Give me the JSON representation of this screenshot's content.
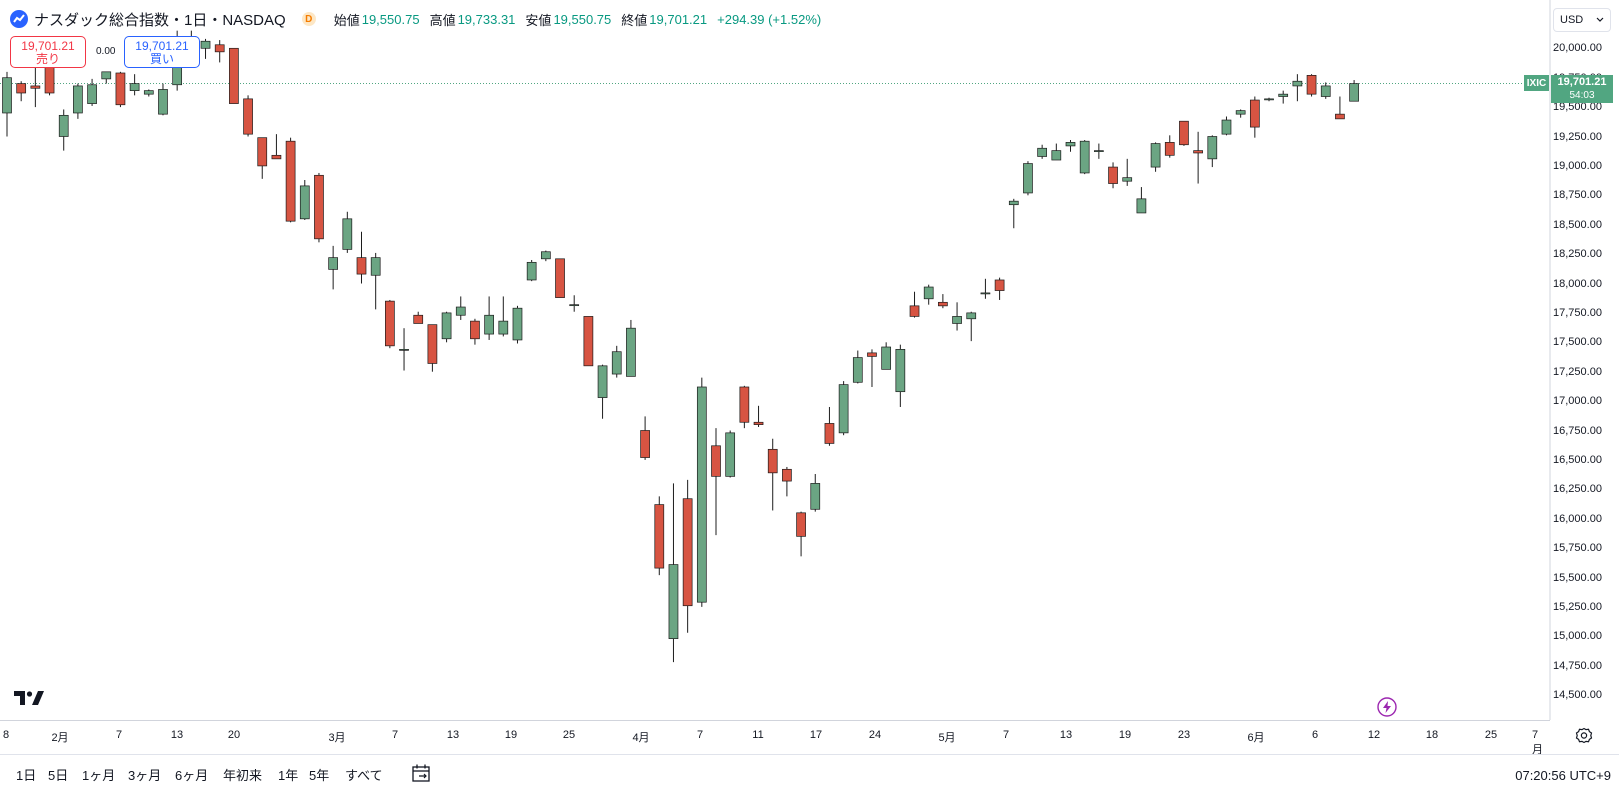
{
  "header": {
    "title": "ナスダック総合指数・1日・NASDAQ",
    "badge": "D",
    "open_label": "始値",
    "open": "19,550.75",
    "high_label": "高値",
    "high": "19,733.31",
    "low_label": "安値",
    "low": "19,550.75",
    "close_label": "終値",
    "close": "19,701.21",
    "change": "+294.39 (+1.52%)"
  },
  "trade": {
    "sell_price": "19,701.21",
    "sell_label": "売り",
    "spread": "0.00",
    "buy_price": "19,701.21",
    "buy_label": "買い"
  },
  "currency": "USD",
  "price_tag": {
    "symbol": "IXIC",
    "price": "19,701.21",
    "countdown": "54:03"
  },
  "colors": {
    "up": "#6ba583",
    "down": "#d75442",
    "tag": "#51a681"
  },
  "y_ticks": [
    "20,000.00",
    "19,750.00",
    "19,500.00",
    "19,250.00",
    "19,000.00",
    "18,750.00",
    "18,500.00",
    "18,250.00",
    "18,000.00",
    "17,750.00",
    "17,500.00",
    "17,250.00",
    "17,000.00",
    "16,750.00",
    "16,500.00",
    "16,250.00",
    "16,000.00",
    "15,750.00",
    "15,500.00",
    "15,250.00",
    "15,000.00",
    "14,750.00",
    "14,500.00"
  ],
  "x_ticks": [
    "8",
    "2月",
    "7",
    "13",
    "20",
    "3月",
    "7",
    "13",
    "19",
    "25",
    "4月",
    "7",
    "11",
    "17",
    "24",
    "5月",
    "7",
    "13",
    "19",
    "23",
    "6月",
    "6",
    "12",
    "18",
    "25",
    "7月"
  ],
  "bottom": {
    "ranges": [
      "1日",
      "5日",
      "1ヶ月",
      "3ヶ月",
      "6ヶ月",
      "年初来",
      "1年",
      "5年",
      "すべて"
    ],
    "time": "07:20:56 UTC+9"
  },
  "chart_data": {
    "type": "candlestick",
    "ylim": [
      14500,
      20200
    ],
    "last_price": 19701.21,
    "candles": [
      {
        "o": 19450,
        "h": 19800,
        "l": 19250,
        "c": 19750
      },
      {
        "o": 19700,
        "h": 19720,
        "l": 19550,
        "c": 19620
      },
      {
        "o": 19680,
        "h": 19850,
        "l": 19500,
        "c": 19660
      },
      {
        "o": 19940,
        "h": 19960,
        "l": 19600,
        "c": 19620
      },
      {
        "o": 19250,
        "h": 19480,
        "l": 19130,
        "c": 19430
      },
      {
        "o": 19450,
        "h": 19700,
        "l": 19400,
        "c": 19680
      },
      {
        "o": 19530,
        "h": 19740,
        "l": 19510,
        "c": 19690
      },
      {
        "o": 19740,
        "h": 19800,
        "l": 19700,
        "c": 19800
      },
      {
        "o": 19790,
        "h": 19800,
        "l": 19500,
        "c": 19520
      },
      {
        "o": 19640,
        "h": 19780,
        "l": 19600,
        "c": 19700
      },
      {
        "o": 19610,
        "h": 19650,
        "l": 19590,
        "c": 19640
      },
      {
        "o": 19440,
        "h": 19700,
        "l": 19430,
        "c": 19650
      },
      {
        "o": 19690,
        "h": 20150,
        "l": 19640,
        "c": 20100
      },
      {
        "o": 20100,
        "h": 20150,
        "l": 20040,
        "c": 20040
      },
      {
        "o": 20000,
        "h": 20080,
        "l": 19910,
        "c": 20060
      },
      {
        "o": 20030,
        "h": 20070,
        "l": 19880,
        "c": 19970
      },
      {
        "o": 20000,
        "h": 20000,
        "l": 19530,
        "c": 19530
      },
      {
        "o": 19570,
        "h": 19600,
        "l": 19250,
        "c": 19270
      },
      {
        "o": 19240,
        "h": 19240,
        "l": 18890,
        "c": 19000
      },
      {
        "o": 19090,
        "h": 19270,
        "l": 19060,
        "c": 19060
      },
      {
        "o": 19210,
        "h": 19240,
        "l": 18520,
        "c": 18530
      },
      {
        "o": 18550,
        "h": 18880,
        "l": 18540,
        "c": 18830
      },
      {
        "o": 18920,
        "h": 18940,
        "l": 18350,
        "c": 18380
      },
      {
        "o": 18120,
        "h": 18320,
        "l": 17950,
        "c": 18220
      },
      {
        "o": 18290,
        "h": 18610,
        "l": 18260,
        "c": 18550
      },
      {
        "o": 18220,
        "h": 18440,
        "l": 18000,
        "c": 18080
      },
      {
        "o": 18070,
        "h": 18260,
        "l": 17780,
        "c": 18220
      },
      {
        "o": 17850,
        "h": 17860,
        "l": 17450,
        "c": 17470
      },
      {
        "o": 17440,
        "h": 17620,
        "l": 17260,
        "c": 17440
      },
      {
        "o": 17730,
        "h": 17760,
        "l": 17660,
        "c": 17660
      },
      {
        "o": 17650,
        "h": 17650,
        "l": 17250,
        "c": 17320
      },
      {
        "o": 17530,
        "h": 17760,
        "l": 17500,
        "c": 17750
      },
      {
        "o": 17730,
        "h": 17890,
        "l": 17690,
        "c": 17800
      },
      {
        "o": 17680,
        "h": 17700,
        "l": 17480,
        "c": 17530
      },
      {
        "o": 17570,
        "h": 17890,
        "l": 17520,
        "c": 17730
      },
      {
        "o": 17570,
        "h": 17890,
        "l": 17550,
        "c": 17680
      },
      {
        "o": 17520,
        "h": 17810,
        "l": 17490,
        "c": 17790
      },
      {
        "o": 18030,
        "h": 18200,
        "l": 18020,
        "c": 18180
      },
      {
        "o": 18210,
        "h": 18280,
        "l": 18190,
        "c": 18270
      },
      {
        "o": 18210,
        "h": 18210,
        "l": 17880,
        "c": 17880
      },
      {
        "o": 17820,
        "h": 17900,
        "l": 17760,
        "c": 17820
      },
      {
        "o": 17720,
        "h": 17720,
        "l": 17300,
        "c": 17300
      },
      {
        "o": 17030,
        "h": 17310,
        "l": 16850,
        "c": 17300
      },
      {
        "o": 17230,
        "h": 17470,
        "l": 17200,
        "c": 17420
      },
      {
        "o": 17210,
        "h": 17690,
        "l": 17210,
        "c": 17620
      },
      {
        "o": 16750,
        "h": 16870,
        "l": 16500,
        "c": 16520
      },
      {
        "o": 16120,
        "h": 16190,
        "l": 15520,
        "c": 15580
      },
      {
        "o": 14980,
        "h": 16300,
        "l": 14780,
        "c": 15610
      },
      {
        "o": 16170,
        "h": 16330,
        "l": 15030,
        "c": 15260
      },
      {
        "o": 15290,
        "h": 17200,
        "l": 15250,
        "c": 17120
      },
      {
        "o": 16620,
        "h": 16770,
        "l": 15860,
        "c": 16360
      },
      {
        "o": 16360,
        "h": 16750,
        "l": 16350,
        "c": 16730
      },
      {
        "o": 17120,
        "h": 17130,
        "l": 16770,
        "c": 16820
      },
      {
        "o": 16820,
        "h": 16960,
        "l": 16780,
        "c": 16800
      },
      {
        "o": 16590,
        "h": 16680,
        "l": 16070,
        "c": 16390
      },
      {
        "o": 16420,
        "h": 16440,
        "l": 16190,
        "c": 16320
      },
      {
        "o": 16050,
        "h": 16060,
        "l": 15680,
        "c": 15850
      },
      {
        "o": 16080,
        "h": 16380,
        "l": 16060,
        "c": 16300
      },
      {
        "o": 16810,
        "h": 16950,
        "l": 16620,
        "c": 16640
      },
      {
        "o": 16730,
        "h": 17170,
        "l": 16710,
        "c": 17140
      },
      {
        "o": 17160,
        "h": 17430,
        "l": 17150,
        "c": 17370
      },
      {
        "o": 17410,
        "h": 17440,
        "l": 17120,
        "c": 17380
      },
      {
        "o": 17270,
        "h": 17500,
        "l": 17270,
        "c": 17460
      },
      {
        "o": 17080,
        "h": 17480,
        "l": 16950,
        "c": 17440
      },
      {
        "o": 17810,
        "h": 17930,
        "l": 17710,
        "c": 17720
      },
      {
        "o": 17870,
        "h": 17990,
        "l": 17820,
        "c": 17970
      },
      {
        "o": 17840,
        "h": 17910,
        "l": 17790,
        "c": 17810
      },
      {
        "o": 17660,
        "h": 17840,
        "l": 17600,
        "c": 17720
      },
      {
        "o": 17700,
        "h": 17760,
        "l": 17510,
        "c": 17750
      },
      {
        "o": 17920,
        "h": 18040,
        "l": 17870,
        "c": 17920
      },
      {
        "o": 18030,
        "h": 18050,
        "l": 17860,
        "c": 17940
      },
      {
        "o": 18670,
        "h": 18720,
        "l": 18470,
        "c": 18700
      },
      {
        "o": 18770,
        "h": 19040,
        "l": 18750,
        "c": 19020
      },
      {
        "o": 19080,
        "h": 19180,
        "l": 19060,
        "c": 19150
      },
      {
        "o": 19050,
        "h": 19190,
        "l": 19050,
        "c": 19130
      },
      {
        "o": 19170,
        "h": 19220,
        "l": 19120,
        "c": 19200
      },
      {
        "o": 18940,
        "h": 19220,
        "l": 18930,
        "c": 19210
      },
      {
        "o": 19130,
        "h": 19190,
        "l": 19060,
        "c": 19130
      },
      {
        "o": 18990,
        "h": 19030,
        "l": 18810,
        "c": 18850
      },
      {
        "o": 18870,
        "h": 19060,
        "l": 18830,
        "c": 18900
      },
      {
        "o": 18600,
        "h": 18820,
        "l": 18600,
        "c": 18720
      },
      {
        "o": 18990,
        "h": 19200,
        "l": 18950,
        "c": 19190
      },
      {
        "o": 19200,
        "h": 19260,
        "l": 19070,
        "c": 19090
      },
      {
        "o": 19380,
        "h": 19380,
        "l": 19170,
        "c": 19180
      },
      {
        "o": 19130,
        "h": 19290,
        "l": 18850,
        "c": 19110
      },
      {
        "o": 19060,
        "h": 19260,
        "l": 18990,
        "c": 19250
      },
      {
        "o": 19270,
        "h": 19420,
        "l": 19260,
        "c": 19390
      },
      {
        "o": 19440,
        "h": 19480,
        "l": 19410,
        "c": 19470
      },
      {
        "o": 19560,
        "h": 19590,
        "l": 19240,
        "c": 19330
      },
      {
        "o": 19570,
        "h": 19580,
        "l": 19550,
        "c": 19570
      },
      {
        "o": 19590,
        "h": 19640,
        "l": 19530,
        "c": 19610
      },
      {
        "o": 19680,
        "h": 19780,
        "l": 19550,
        "c": 19720
      },
      {
        "o": 19770,
        "h": 19780,
        "l": 19590,
        "c": 19610
      },
      {
        "o": 19590,
        "h": 19710,
        "l": 19570,
        "c": 19680
      },
      {
        "o": 19440,
        "h": 19590,
        "l": 19400,
        "c": 19400
      },
      {
        "o": 19550,
        "h": 19730,
        "l": 19550,
        "c": 19700
      }
    ]
  }
}
